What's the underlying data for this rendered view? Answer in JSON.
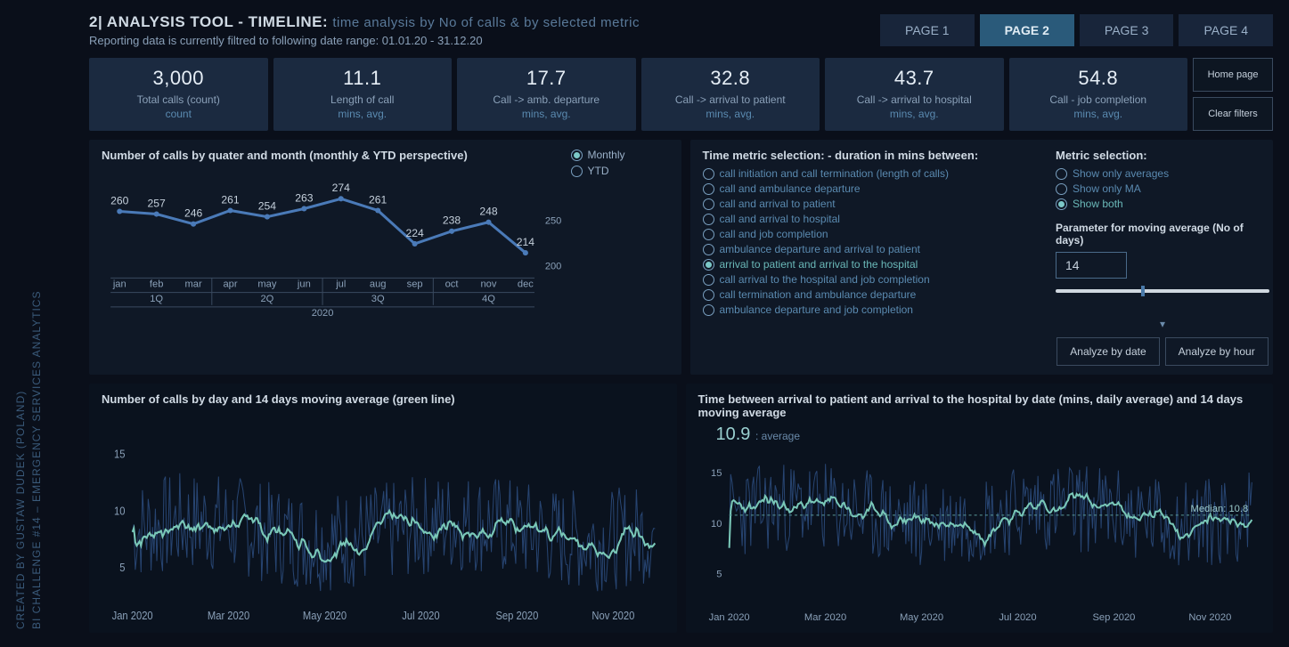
{
  "sidebar": {
    "line1": "BI CHALLENGE #14 – EMERGENCY SERVICES ANALYTICS",
    "line2": "CREATED BY GUSTAW DUDEK (POLAND)"
  },
  "header": {
    "title_strong": "2| ANALYSIS TOOL - TIMELINE:",
    "title_sub": "time analysis by No of calls & by selected metric",
    "subtitle": "Reporting data is currently filtred to following date range: 01.01.20 - 31.12.20",
    "tabs": [
      "PAGE 1",
      "PAGE 2",
      "PAGE 3",
      "PAGE 4"
    ],
    "active_tab": 1
  },
  "side_buttons": [
    "Home page",
    "Clear filters"
  ],
  "kpis": [
    {
      "value": "3,000",
      "label": "Total calls (count)",
      "unit": "count"
    },
    {
      "value": "11.1",
      "label": "Length of call",
      "unit": "mins, avg."
    },
    {
      "value": "17.7",
      "label": "Call -> amb. departure",
      "unit": "mins, avg."
    },
    {
      "value": "32.8",
      "label": "Call -> arrival to patient",
      "unit": "mins, avg."
    },
    {
      "value": "43.7",
      "label": "Call -> arrival to hospital",
      "unit": "mins, avg."
    },
    {
      "value": "54.8",
      "label": "Call - job completion",
      "unit": "mins, avg."
    }
  ],
  "monthly_chart": {
    "title": "Number of calls by quater and month (monthly & YTD perspective)",
    "legend": [
      "Monthly",
      "YTD"
    ],
    "legend_selected": 0,
    "months": [
      "jan",
      "feb",
      "mar",
      "apr",
      "may",
      "jun",
      "jul",
      "aug",
      "sep",
      "oct",
      "nov",
      "dec"
    ],
    "quarters": [
      "1Q",
      "2Q",
      "3Q",
      "4Q"
    ],
    "year": "2020",
    "values": [
      260,
      257,
      246,
      261,
      254,
      263,
      274,
      261,
      224,
      238,
      248,
      214
    ],
    "y_ticks": [
      200,
      250
    ],
    "ylim": [
      190,
      290
    ],
    "line_color": "#4a7ab8",
    "point_color": "#4a7ab8"
  },
  "time_metric": {
    "title": "Time metric selection: - duration in mins between:",
    "options": [
      "call initiation and call termination (length of calls)",
      "call and ambulance departure",
      "call and arrival to patient",
      "call and arrival to hospital",
      "call and job completion",
      "ambulance departure and arrival to patient",
      "arrival to patient and arrival to the hospital",
      "call arrival to the hospital and job completion",
      "call termination and ambulance departure",
      "ambulance departure and job completion"
    ],
    "selected": 6
  },
  "metric_sel": {
    "title": "Metric selection:",
    "options": [
      "Show only averages",
      "Show only MA",
      "Show both"
    ],
    "selected": 2
  },
  "param": {
    "title": "Parameter for moving average (No of days)",
    "value": "14",
    "slider_pos": 0.4
  },
  "analyze_buttons": [
    "Analyze by date",
    "Analyze by hour"
  ],
  "chart_left": {
    "title": "Number of calls by day and 14 days moving average (green line)",
    "y_ticks": [
      5,
      10,
      15
    ],
    "ylim": [
      2,
      18
    ],
    "x_labels": [
      "Jan 2020",
      "Mar 2020",
      "May 2020",
      "Jul 2020",
      "Sep 2020",
      "Nov 2020"
    ],
    "daily_color": "#2a4a7a",
    "ma_color": "#7ac8b8"
  },
  "chart_right": {
    "title": "Time between arrival to patient and arrival to the hospital by date (mins, daily average) and 14 days moving average",
    "avg_value": "10.9",
    "avg_label": ": average",
    "y_ticks": [
      5,
      10,
      15
    ],
    "ylim": [
      2,
      18
    ],
    "x_labels": [
      "Jan 2020",
      "Mar 2020",
      "May 2020",
      "Jul 2020",
      "Sep 2020",
      "Nov 2020"
    ],
    "daily_color": "#2a4a7a",
    "ma_color": "#7ac8b8",
    "median_label": "Median: 10.8",
    "median_value": 10.8
  },
  "colors": {
    "panel_bg": "#0f1826",
    "card_bg": "#1b2a40",
    "accent": "#7ac8b8",
    "line": "#4a7ab8",
    "text_dim": "#5a8ab0"
  }
}
